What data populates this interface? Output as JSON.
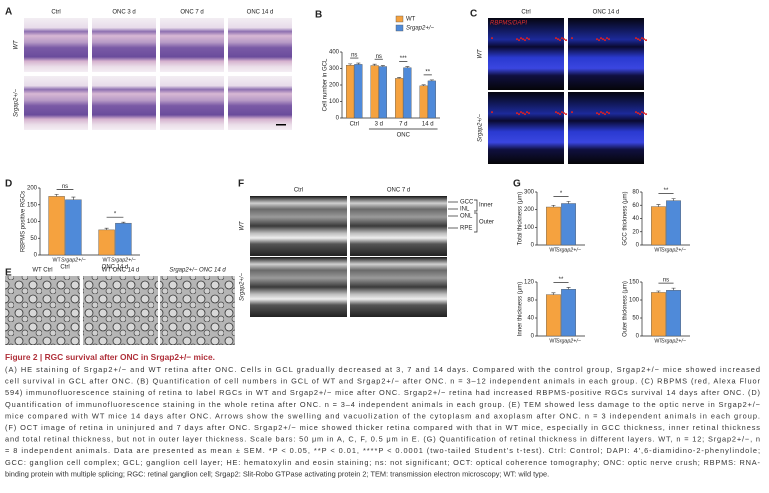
{
  "panels": {
    "A": {
      "letter": "A",
      "columns": [
        "Ctrl",
        "ONC 3 d",
        "ONC 7 d",
        "ONC 14 d"
      ],
      "rows": [
        "WT",
        "Srgap2+/−"
      ]
    },
    "C": {
      "letter": "C",
      "columns": [
        "Ctrl",
        "ONC 14 d"
      ],
      "rows": [
        "WT",
        "Srgap2+/−"
      ],
      "stain": "RBPMS/DAPI"
    },
    "E": {
      "letter": "E",
      "columns": [
        "WT Ctrl",
        "WT ONC 14 d",
        "Srgap2+/− ONC 14 d"
      ]
    },
    "F": {
      "letter": "F",
      "columns": [
        "Ctrl",
        "ONC 7 d"
      ],
      "rows": [
        "WT",
        "Srgap2+/−"
      ],
      "layers": [
        "GCC",
        "INL",
        "ONL",
        "RPE"
      ],
      "groups": [
        "Inner",
        "Outer"
      ]
    }
  },
  "chart_data": [
    {
      "type": "bar",
      "panel": "B",
      "ylabel": "Cell number in GCL",
      "xlabel": "ONC",
      "legend": true,
      "categories": [
        "Ctrl",
        "3 d",
        "7 d",
        "14 d"
      ],
      "series": [
        {
          "name": "WT",
          "color": "#f5a23f",
          "values": [
            320,
            318,
            240,
            195
          ],
          "errors": [
            8,
            8,
            6,
            6
          ]
        },
        {
          "name": "Srgap2+/−",
          "color": "#4f8ad9",
          "values": [
            325,
            312,
            305,
            225
          ],
          "errors": [
            8,
            6,
            7,
            6
          ]
        }
      ],
      "annotations": [
        "ns",
        "ns",
        "***",
        "**"
      ],
      "ylim": [
        0,
        400
      ],
      "yticks": [
        0,
        100,
        200,
        300,
        400
      ]
    },
    {
      "type": "bar",
      "panel": "D",
      "ylabel": "RBPMS positive RGCs",
      "name_under_bars": true,
      "categories": [
        "Ctrl",
        "ONC 14 d"
      ],
      "series": [
        {
          "name": "WT",
          "color": "#f5a23f",
          "values": [
            175,
            75
          ],
          "errors": [
            6,
            5
          ]
        },
        {
          "name": "Srgap2+/−",
          "color": "#4f8ad9",
          "values": [
            165,
            95
          ],
          "errors": [
            8,
            3
          ]
        }
      ],
      "annotations": [
        "ns",
        "*"
      ],
      "ylim": [
        0,
        200
      ],
      "yticks": [
        0,
        50,
        100,
        150,
        200
      ]
    },
    {
      "type": "bar",
      "panel": "G",
      "ylabel": "Total thickness (μm)",
      "name_under_bars": true,
      "series": [
        {
          "name": "WT",
          "color": "#f5a23f",
          "values": [
            215
          ],
          "errors": [
            10
          ]
        },
        {
          "name": "Srgap2+/−",
          "color": "#4f8ad9",
          "values": [
            235
          ],
          "errors": [
            12
          ]
        }
      ],
      "annotations": [
        "*"
      ],
      "ylim": [
        0,
        300
      ],
      "yticks": [
        0,
        100,
        200,
        300
      ]
    },
    {
      "type": "bar",
      "ylabel": "GCC thickness (μm)",
      "name_under_bars": true,
      "series": [
        {
          "name": "WT",
          "color": "#f5a23f",
          "values": [
            58
          ],
          "errors": [
            3
          ]
        },
        {
          "name": "Srgap2+/−",
          "color": "#4f8ad9",
          "values": [
            67
          ],
          "errors": [
            3
          ]
        }
      ],
      "annotations": [
        "**"
      ],
      "ylim": [
        0,
        80
      ],
      "yticks": [
        0,
        20,
        40,
        60,
        80
      ]
    },
    {
      "type": "bar",
      "ylabel": "Inner thickness (μm)",
      "name_under_bars": true,
      "series": [
        {
          "name": "WT",
          "color": "#f5a23f",
          "values": [
            92
          ],
          "errors": [
            4
          ]
        },
        {
          "name": "Srgap2+/−",
          "color": "#4f8ad9",
          "values": [
            104
          ],
          "errors": [
            4
          ]
        }
      ],
      "annotations": [
        "**"
      ],
      "ylim": [
        0,
        120
      ],
      "yticks": [
        0,
        40,
        80,
        120
      ]
    },
    {
      "type": "bar",
      "ylabel": "Outer thickness (μm)",
      "name_under_bars": true,
      "series": [
        {
          "name": "WT",
          "color": "#f5a23f",
          "values": [
            121
          ],
          "errors": [
            4
          ]
        },
        {
          "name": "Srgap2+/−",
          "color": "#4f8ad9",
          "values": [
            127
          ],
          "errors": [
            6
          ]
        }
      ],
      "annotations": [
        "ns"
      ],
      "ylim": [
        0,
        150
      ],
      "yticks": [
        0,
        50,
        100,
        150
      ]
    }
  ],
  "figure": {
    "title": "Figure 2 | RGC survival after ONC in Srgap2+/− mice.",
    "caption": [
      "(A) HE staining of Srgap2+/− and WT retina after ONC. Cells in GCL gradually decreased at 3, 7 and 14 days. Compared with the control group, Srgap2+/− mice showed increased",
      "cell survival in GCL after ONC. (B) Quantification of cell numbers in GCL of WT and Srgap2+/− after ONC. n = 3–12 independent animals in each group. (C) RBPMS (red, Alexa Fluor",
      "594) immunofluorescence staining of retina to label RGCs in WT and Srgap2+/− mice after ONC. Srgap2+/− retina had increased RBPMS-positive RGCs survival 14 days after ONC. (D)",
      "Quantification of immunofluorescence staining in the whole retina after ONC. n = 3–4 independent animals in each group. (E) TEM showed less damage to the optic nerve in Srgap2+/−",
      "mice compared with WT mice 14 days after ONC. Arrows show the swelling and vacuolization of the cytoplasm and axoplasm after ONC. n = 3 independent animals in each group.",
      "(F) OCT image of retina in uninjured and 7 days after ONC. Srgap2+/− mice showed thicker retina compared with that in WT mice, especially in GCC thickness, inner retinal thickness",
      "and total retinal thickness, but not in outer layer thickness. Scale bars: 50 μm in A, C, F, 0.5 μm in E. (G) Quantification of retinal thickness in different layers. WT, n = 12; Srgap2+/−, n",
      "= 8 independent animals. Data are presented as mean ± SEM. *P < 0.05, **P < 0.01, ****P < 0.0001 (two-tailed Student’s t-test). Ctrl: Control; DAPI: 4′,6-diamidino-2-phenylindole;",
      "GCC: ganglion cell complex; GCL; ganglion cell layer; HE: hematoxylin and eosin staining; ns: not significant; OCT: optical coherence tomography; ONC: optic nerve crush; RBPMS: RNA-",
      "binding protein with multiple splicing; RGC: retinal ganglion cell; Srgap2: Slit-Robo GTPase activating protein 2; TEM: transmission electron microscopy; WT: wild type."
    ]
  }
}
